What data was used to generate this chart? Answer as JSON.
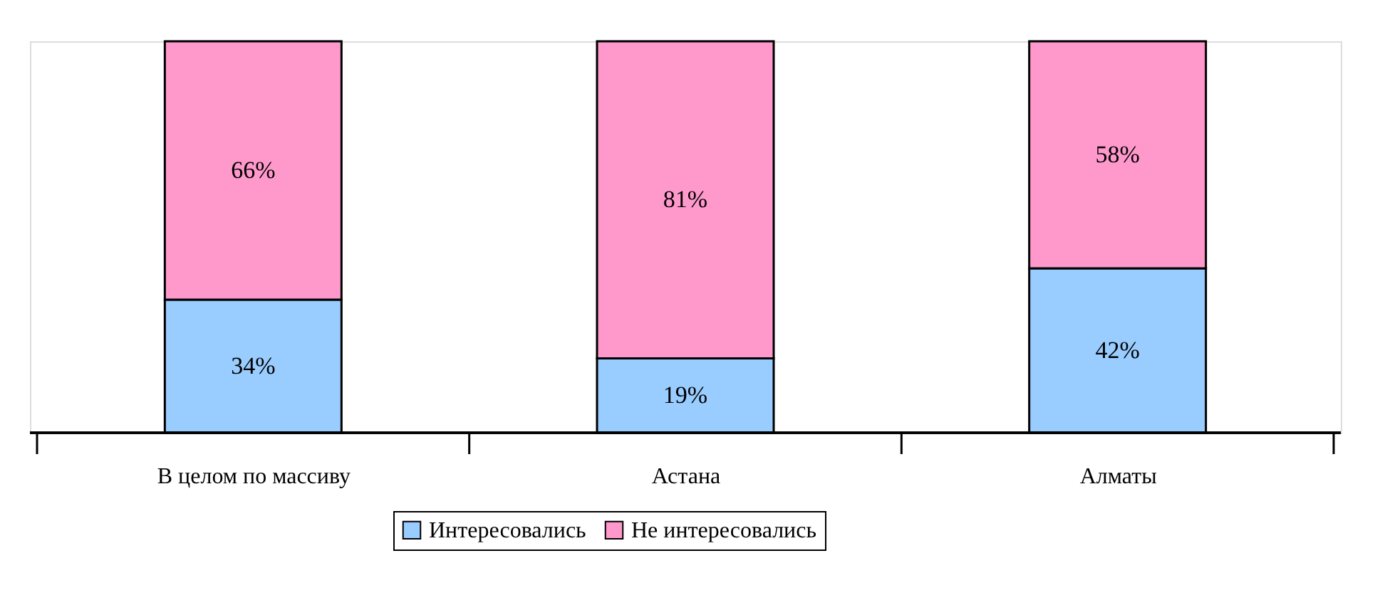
{
  "chart_data": {
    "type": "bar",
    "stacked": true,
    "categories": [
      "В целом по массиву",
      "Астана",
      "Алматы"
    ],
    "series": [
      {
        "name": "Интересовались",
        "color": "#99ccff",
        "values": [
          34,
          19,
          42
        ],
        "value_labels": [
          "34%",
          "19%",
          "42%"
        ]
      },
      {
        "name": "Не интересовались",
        "color": "#ff99cc",
        "values": [
          66,
          81,
          58
        ],
        "value_labels": [
          "66%",
          "81%",
          "58%"
        ]
      }
    ],
    "tick_labels": "x",
    "grid": false,
    "legend": "bottom"
  }
}
